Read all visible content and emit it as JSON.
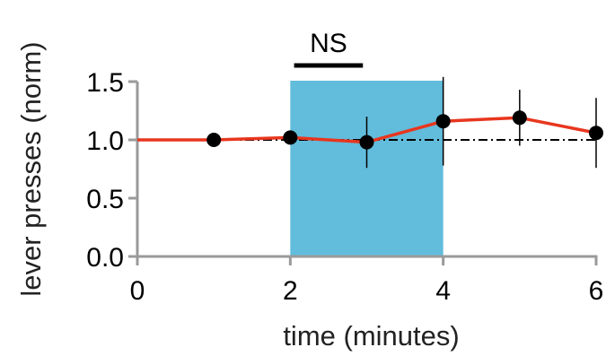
{
  "chart_data": {
    "type": "line",
    "xlabel": "time (minutes)",
    "ylabel": "lever presses (norm)",
    "xlim": [
      0,
      6
    ],
    "ylim": [
      0,
      1.5
    ],
    "xticks": [
      "0",
      "2",
      "4",
      "6"
    ],
    "yticks": [
      "0.0",
      "0.5",
      "1.0",
      "1.5"
    ],
    "grid": false,
    "legend": "none",
    "shaded_region": {
      "x_start": 2,
      "x_end": 4,
      "color": "#62bcdc"
    },
    "reference_line": {
      "y": 1.0,
      "style": "dash-dot",
      "color": "#000000"
    },
    "series": [
      {
        "color": "#e8361e",
        "marker_color": "#000000",
        "x": [
          0,
          1,
          2,
          3,
          4,
          5,
          6
        ],
        "y": [
          1.0,
          1.0,
          1.02,
          0.98,
          1.16,
          1.19,
          1.06
        ],
        "error": [
          0,
          0,
          0,
          0.22,
          0.38,
          0.24,
          0.3
        ],
        "markers": [
          false,
          true,
          true,
          true,
          true,
          true,
          true
        ]
      }
    ],
    "annotation": {
      "text": "NS",
      "x_start": 2.05,
      "x_end": 2.95
    }
  }
}
